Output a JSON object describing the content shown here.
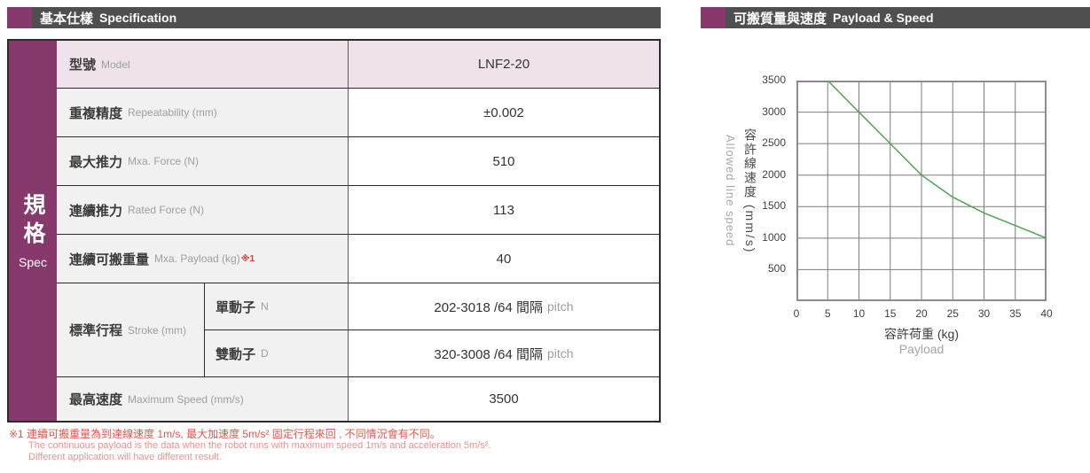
{
  "colors": {
    "accent_purple": "#87386c",
    "header_gray": "#4f4f4f",
    "pink_row": "#efe2ea",
    "label_bg": "#f1f1f2",
    "border_dark": "#2b2b2b",
    "line_green": "#4aa74e",
    "footnote_red": "#e4574d",
    "footnote_light_red": "#ee938d"
  },
  "left_panel": {
    "header": {
      "title_zh": "基本仕樣",
      "title_en": "Specification"
    },
    "sidebar": {
      "zh": "規格",
      "en": "Spec"
    },
    "table": {
      "model": {
        "zh": "型號",
        "en": "Model",
        "value": "LNF2-20"
      },
      "repeatability": {
        "zh": "重複精度",
        "en": "Repeatability (mm)",
        "value": "±0.002"
      },
      "max_force": {
        "zh": "最大推力",
        "en": "Mxa. Force (N)",
        "value": "510"
      },
      "rated_force": {
        "zh": "連續推力",
        "en": "Rated Force (N)",
        "value": "113"
      },
      "payload": {
        "zh": "連續可搬重量",
        "en": "Mxa. Payload (kg)",
        "note": "※1",
        "value": "40"
      },
      "stroke": {
        "zh": "標準行程",
        "en": "Stroke (mm)",
        "single": {
          "zh": "單動子",
          "en": "N",
          "value": "202-3018 /64 間隔",
          "suffix": "pitch"
        },
        "double": {
          "zh": "雙動子",
          "en": "D",
          "value": "320-3008 /64 間隔",
          "suffix": "pitch"
        }
      },
      "max_speed": {
        "zh": "最高速度",
        "en": "Maximum Speed (mm/s)",
        "value": "3500"
      }
    },
    "footnote": {
      "line1": "※1 連續可搬重量為到達線速度 1m/s, 最大加速度 5m/s² 固定行程來回 , 不同情況會有不同。",
      "line2": "The continuous payload is the data when the robot runs with maximum speed 1m/s and acceleration 5m/s².",
      "line3": "Different application will have different result."
    }
  },
  "right_panel": {
    "header": {
      "title_zh": "可搬質量與速度",
      "title_en": "Payload & Speed"
    }
  },
  "chart_data": {
    "type": "line",
    "title": "可搬質量與速度 Payload & Speed",
    "xlabel_zh": "容許荷重 (kg)",
    "xlabel_en": "Payload",
    "ylabel_zh": "容許線速度 (mm/s)",
    "ylabel_en": "Allowed line speed",
    "x": [
      0,
      5,
      10,
      15,
      20,
      25,
      30,
      35,
      40
    ],
    "y": [
      3500,
      3500,
      3000,
      2500,
      2000,
      1650,
      1400,
      1200,
      1000
    ],
    "xlim": [
      0,
      40
    ],
    "ylim": [
      0,
      3500
    ],
    "x_ticks": [
      0,
      5,
      10,
      15,
      20,
      25,
      30,
      35,
      40
    ],
    "y_ticks": [
      500,
      1000,
      1500,
      2000,
      2500,
      3000,
      3500
    ],
    "grid": true,
    "legend": false,
    "line_color": "#4aa74e",
    "grid_color": "#7d7d7d",
    "border_color": "#8d8d8d"
  }
}
